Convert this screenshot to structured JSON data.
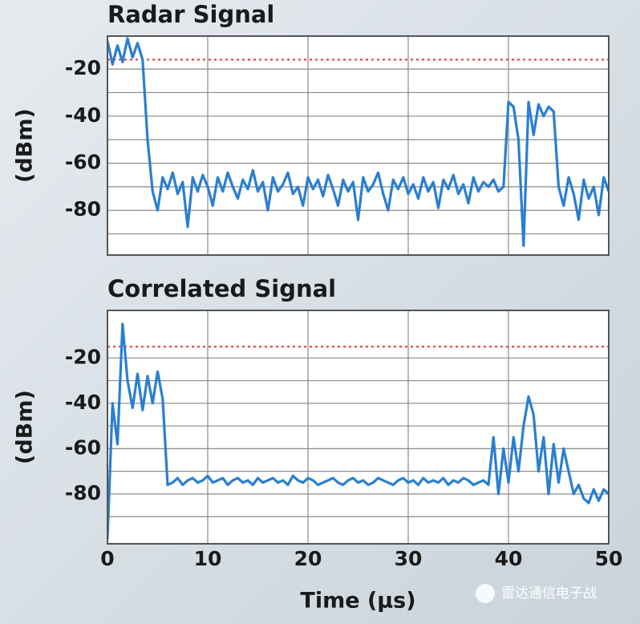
{
  "chart_data": [
    {
      "type": "line",
      "title": "Radar Signal",
      "ylabel": "(dBm)",
      "color": "#2a7fd0",
      "x": [
        0,
        0.5,
        1,
        1.5,
        2,
        2.5,
        3,
        3.5,
        4,
        4.5,
        5,
        5.5,
        6,
        6.5,
        7,
        7.5,
        8,
        8.5,
        9,
        9.5,
        10,
        10.5,
        11,
        11.5,
        12,
        12.5,
        13,
        13.5,
        14,
        14.5,
        15,
        15.5,
        16,
        16.5,
        17,
        17.5,
        18,
        18.5,
        19,
        19.5,
        20,
        20.5,
        21,
        21.5,
        22,
        22.5,
        23,
        23.5,
        24,
        24.5,
        25,
        25.5,
        26,
        26.5,
        27,
        27.5,
        28,
        28.5,
        29,
        29.5,
        30,
        30.5,
        31,
        31.5,
        32,
        32.5,
        33,
        33.5,
        34,
        34.5,
        35,
        35.5,
        36,
        36.5,
        37,
        37.5,
        38,
        38.5,
        39,
        39.5,
        40,
        40.5,
        41,
        41.5,
        42,
        42.5,
        43,
        43.5,
        44,
        44.5,
        45,
        45.5,
        46,
        46.5,
        47,
        47.5,
        48,
        48.5,
        49,
        49.5,
        50
      ],
      "values": [
        -8,
        -18,
        -10,
        -17,
        -7,
        -15,
        -9,
        -16,
        -50,
        -72,
        -80,
        -66,
        -71,
        -64,
        -73,
        -68,
        -87,
        -66,
        -72,
        -65,
        -70,
        -78,
        -66,
        -72,
        -64,
        -70,
        -75,
        -67,
        -71,
        -63,
        -72,
        -68,
        -80,
        -66,
        -72,
        -69,
        -64,
        -73,
        -70,
        -78,
        -66,
        -71,
        -67,
        -74,
        -65,
        -71,
        -78,
        -67,
        -72,
        -68,
        -84,
        -66,
        -72,
        -69,
        -64,
        -73,
        -80,
        -67,
        -71,
        -66,
        -73,
        -69,
        -75,
        -66,
        -72,
        -68,
        -79,
        -67,
        -71,
        -65,
        -73,
        -69,
        -77,
        -66,
        -72,
        -68,
        -70,
        -67,
        -72,
        -70,
        -34,
        -36,
        -50,
        -95,
        -34,
        -48,
        -35,
        -40,
        -36,
        -38,
        -70,
        -78,
        -66,
        -73,
        -84,
        -67,
        -75,
        -70,
        -82,
        -66,
        -72
      ],
      "xlim": [
        0,
        50
      ],
      "xticks": [
        0,
        10,
        20,
        30,
        40,
        50
      ],
      "xtick_labels": false,
      "ylim": [
        -99,
        -6
      ],
      "yticks": [
        -80,
        -60,
        -40,
        -20
      ],
      "ygrid_minor": [
        -90,
        -70,
        -50,
        -30
      ],
      "grid": true,
      "threshold": {
        "value": -16,
        "color": "#e0303a"
      }
    },
    {
      "type": "line",
      "title": "Correlated Signal",
      "ylabel": "(dBm)",
      "xlabel": "Time (µs)",
      "color": "#2a7fd0",
      "x": [
        0,
        0.5,
        1,
        1.5,
        2,
        2.5,
        3,
        3.5,
        4,
        4.5,
        5,
        5.5,
        6,
        6.5,
        7,
        7.5,
        8,
        8.5,
        9,
        9.5,
        10,
        10.5,
        11,
        11.5,
        12,
        12.5,
        13,
        13.5,
        14,
        14.5,
        15,
        15.5,
        16,
        16.5,
        17,
        17.5,
        18,
        18.5,
        19,
        19.5,
        20,
        20.5,
        21,
        21.5,
        22,
        22.5,
        23,
        23.5,
        24,
        24.5,
        25,
        25.5,
        26,
        26.5,
        27,
        27.5,
        28,
        28.5,
        29,
        29.5,
        30,
        30.5,
        31,
        31.5,
        32,
        32.5,
        33,
        33.5,
        34,
        34.5,
        35,
        35.5,
        36,
        36.5,
        37,
        37.5,
        38,
        38.5,
        39,
        39.5,
        40,
        40.5,
        41,
        41.5,
        42,
        42.5,
        43,
        43.5,
        44,
        44.5,
        45,
        45.5,
        46,
        46.5,
        47,
        47.5,
        48,
        48.5,
        49,
        49.5,
        50
      ],
      "values": [
        -100,
        -40,
        -58,
        -5,
        -30,
        -42,
        -27,
        -43,
        -28,
        -40,
        -26,
        -38,
        -76,
        -75,
        -73,
        -76,
        -74,
        -73,
        -75,
        -74,
        -72,
        -75,
        -74,
        -73,
        -76,
        -74,
        -73,
        -75,
        -74,
        -76,
        -73,
        -75,
        -74,
        -73,
        -75,
        -74,
        -76,
        -72,
        -74,
        -75,
        -73,
        -74,
        -76,
        -75,
        -74,
        -73,
        -75,
        -76,
        -74,
        -73,
        -75,
        -74,
        -76,
        -75,
        -73,
        -74,
        -75,
        -76,
        -74,
        -73,
        -75,
        -74,
        -76,
        -73,
        -75,
        -74,
        -75,
        -73,
        -76,
        -74,
        -75,
        -73,
        -74,
        -76,
        -75,
        -74,
        -76,
        -55,
        -80,
        -60,
        -75,
        -55,
        -70,
        -50,
        -37,
        -45,
        -70,
        -55,
        -80,
        -58,
        -75,
        -60,
        -70,
        -80,
        -76,
        -82,
        -84,
        -78,
        -83,
        -78,
        -80
      ],
      "xlim": [
        0,
        50
      ],
      "xticks": [
        0,
        10,
        20,
        30,
        40,
        50
      ],
      "xtick_labels": true,
      "ylim": [
        -102,
        1
      ],
      "yticks": [
        -80,
        -60,
        -40,
        -20
      ],
      "ygrid_minor": [
        -90,
        -70,
        -50,
        -30
      ],
      "grid": true,
      "threshold": {
        "value": -15,
        "color": "#e0303a"
      }
    }
  ],
  "watermark": "雷达通信电子战"
}
